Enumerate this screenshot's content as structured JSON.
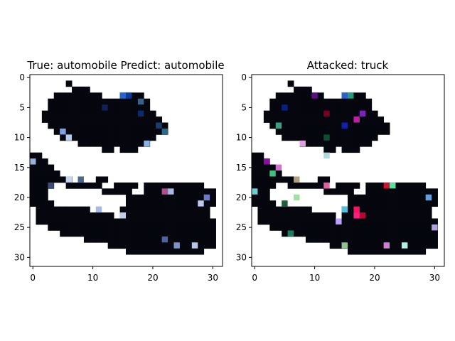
{
  "panels": [
    {
      "title": "True: automobile  Predict: automobile",
      "x_ticks": [
        "0",
        "10",
        "20",
        "30"
      ],
      "y_ticks": [
        "0",
        "5",
        "10",
        "15",
        "20",
        "25",
        "30"
      ],
      "image_description": "32x32 pixelated adversarial-test image, original; dark car silhouette on white background with sparse blue highlights"
    },
    {
      "title": "Attacked: truck",
      "x_ticks": [
        "0",
        "10",
        "20",
        "30"
      ],
      "y_ticks": [
        "0",
        "5",
        "10",
        "15",
        "20",
        "25",
        "30"
      ],
      "image_description": "same 32x32 image with adversarial noise; scattered magenta, green, red, cyan and purple pixels"
    }
  ],
  "colors": {
    "background": "#ffffff",
    "silhouette": "#05060e",
    "axis": "#000000"
  }
}
